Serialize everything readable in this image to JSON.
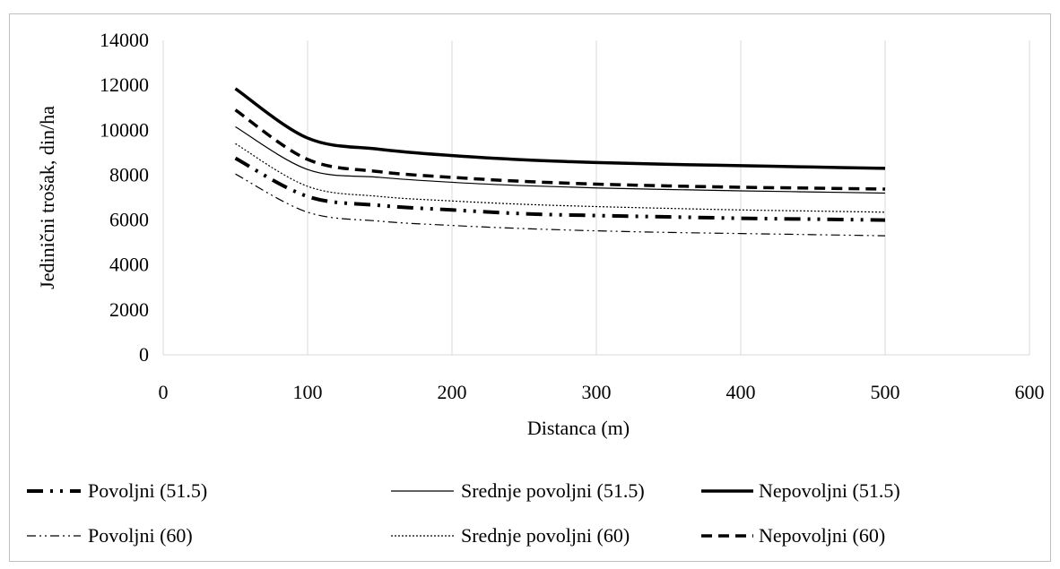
{
  "chart_data": {
    "type": "line",
    "title": "",
    "xlabel": "Distanca (m)",
    "ylabel": "Jedinični trošak, din/ha",
    "xlim": [
      0,
      600
    ],
    "ylim": [
      0,
      14000
    ],
    "x_ticks": [
      "0",
      "100",
      "200",
      "300",
      "400",
      "500",
      "600"
    ],
    "y_ticks": [
      "0",
      "2000",
      "4000",
      "6000",
      "8000",
      "10000",
      "12000",
      "14000"
    ],
    "grid": "vertical",
    "legend_position": "bottom",
    "x": [
      50,
      100,
      150,
      200,
      250,
      300,
      350,
      400,
      450,
      500
    ],
    "series": [
      {
        "name": "Povoljni (51.5)",
        "style": "longdash-dot-dot-thick",
        "values": [
          8750,
          7050,
          6650,
          6450,
          6280,
          6200,
          6140,
          6080,
          6040,
          6000
        ]
      },
      {
        "name": "Srednje povoljni (51.5)",
        "style": "solid-thin",
        "values": [
          10150,
          8250,
          7900,
          7680,
          7530,
          7430,
          7360,
          7300,
          7250,
          7200
        ]
      },
      {
        "name": "Nepovoljni (51.5)",
        "style": "solid-thick",
        "values": [
          11850,
          9650,
          9150,
          8870,
          8680,
          8560,
          8480,
          8420,
          8360,
          8300
        ]
      },
      {
        "name": "Povoljni (60)",
        "style": "dash-dot-dot-thin",
        "values": [
          8050,
          6350,
          5950,
          5760,
          5620,
          5520,
          5450,
          5400,
          5350,
          5300
        ]
      },
      {
        "name": "Srednje povoljni (60)",
        "style": "dotted-thin",
        "values": [
          9400,
          7500,
          7050,
          6850,
          6700,
          6600,
          6520,
          6450,
          6400,
          6350
        ]
      },
      {
        "name": "Nepovoljni (60)",
        "style": "dashed-thick",
        "values": [
          10900,
          8700,
          8150,
          7900,
          7720,
          7600,
          7520,
          7460,
          7420,
          7380
        ]
      }
    ],
    "colors": {
      "line": "#000000",
      "grid": "#d9d9d9",
      "frame": "#bfbfbf"
    }
  }
}
